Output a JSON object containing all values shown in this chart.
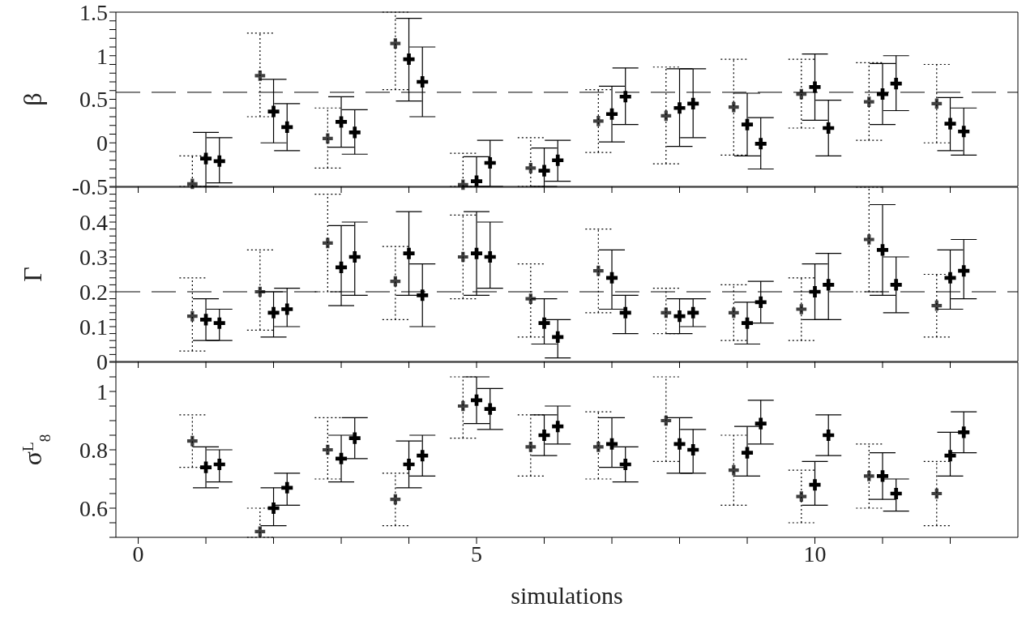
{
  "chart_data": [
    {
      "type": "scatter",
      "ylabel": "β",
      "xlim": [
        -0.33,
        13
      ],
      "ylim": [
        -0.5,
        1.5
      ],
      "tick_labels": "y",
      "marker": "cross",
      "xticks": [
        0,
        {
          "value": 1,
          "label": null
        },
        {
          "value": 2,
          "label": null
        },
        {
          "value": 3,
          "label": null
        },
        {
          "value": 4,
          "label": null
        },
        5,
        {
          "value": 6,
          "label": null
        },
        {
          "value": 7,
          "label": null
        },
        {
          "value": 8,
          "label": null
        },
        {
          "value": 9,
          "label": null
        },
        10,
        {
          "value": 11,
          "label": null
        },
        {
          "value": 12,
          "label": null
        }
      ],
      "yticks": [
        -0.5,
        {
          "value": -0.4,
          "label": null
        },
        {
          "value": -0.3,
          "label": null
        },
        {
          "value": -0.2,
          "label": null
        },
        {
          "value": -0.1,
          "label": null
        },
        0,
        {
          "value": 0.1,
          "label": null
        },
        {
          "value": 0.2,
          "label": null
        },
        {
          "value": 0.3,
          "label": null
        },
        {
          "value": 0.4,
          "label": null
        },
        0.5,
        {
          "value": 0.6,
          "label": null
        },
        {
          "value": 0.7,
          "label": null
        },
        {
          "value": 0.8,
          "label": null
        },
        {
          "value": 0.9,
          "label": null
        },
        1,
        {
          "value": 1.1,
          "label": null
        },
        {
          "value": 1.2,
          "label": null
        },
        {
          "value": 1.3,
          "label": null
        },
        {
          "value": 1.4,
          "label": null
        },
        1.5
      ],
      "ref_lines": [
        {
          "axis": "y",
          "value": 0.58,
          "color": "#000000",
          "line_style": "dashed"
        }
      ],
      "series": [
        {
          "color": "#000000",
          "line_style": "dotted",
          "x": [
            0.8,
            1.8,
            2.8,
            3.8,
            4.8,
            5.8,
            6.8,
            7.8,
            8.8,
            9.8,
            10.8,
            11.8
          ],
          "values": [
            -0.47,
            0.77,
            0.05,
            1.14,
            -0.48,
            -0.29,
            0.25,
            0.31,
            0.41,
            0.56,
            0.47,
            0.45
          ],
          "errors": [
            [
              -0.5,
              -0.15
            ],
            [
              0.3,
              1.26
            ],
            [
              -0.29,
              0.4
            ],
            [
              0.61,
              1.5
            ],
            [
              -0.5,
              -0.12
            ],
            [
              -0.5,
              0.06
            ],
            [
              -0.11,
              0.61
            ],
            [
              -0.24,
              0.87
            ],
            [
              -0.14,
              0.96
            ],
            [
              0.17,
              0.96
            ],
            [
              0.03,
              0.92
            ],
            [
              0,
              0.9
            ]
          ]
        },
        {
          "color": "#000000",
          "line_style": "solid",
          "x": [
            1,
            2,
            3,
            4,
            5,
            6,
            7,
            8,
            9,
            10,
            11,
            12
          ],
          "values": [
            -0.18,
            0.36,
            0.24,
            0.96,
            -0.44,
            -0.32,
            0.33,
            0.4,
            0.21,
            0.64,
            0.56,
            0.22
          ],
          "errors": [
            [
              -0.5,
              0.12
            ],
            [
              0,
              0.73
            ],
            [
              -0.05,
              0.53
            ],
            [
              0.48,
              1.43
            ],
            [
              -0.5,
              -0.16
            ],
            [
              -0.5,
              -0.06
            ],
            [
              0.01,
              0.65
            ],
            [
              -0.04,
              0.85
            ],
            [
              -0.15,
              0.57
            ],
            [
              0.26,
              1.02
            ],
            [
              0.21,
              0.91
            ],
            [
              -0.09,
              0.52
            ]
          ]
        },
        {
          "color": "#000000",
          "line_style": "solid",
          "x": [
            1.2,
            2.2,
            3.2,
            4.2,
            5.2,
            6.2,
            7.2,
            8.2,
            9.2,
            10.2,
            11.2,
            12.2
          ],
          "values": [
            -0.21,
            0.18,
            0.12,
            0.7,
            -0.23,
            -0.2,
            0.53,
            0.45,
            -0.01,
            0.17,
            0.68,
            0.13
          ],
          "errors": [
            [
              -0.46,
              0.06
            ],
            [
              -0.09,
              0.45
            ],
            [
              -0.13,
              0.38
            ],
            [
              0.3,
              1.1
            ],
            [
              -0.5,
              0.03
            ],
            [
              -0.44,
              0.03
            ],
            [
              0.21,
              0.86
            ],
            [
              0.06,
              0.85
            ],
            [
              -0.3,
              0.29
            ],
            [
              -0.15,
              0.49
            ],
            [
              0.37,
              1.0
            ],
            [
              -0.14,
              0.4
            ]
          ]
        }
      ]
    },
    {
      "type": "scatter",
      "ylabel": "Γ",
      "xlim": [
        -0.33,
        13
      ],
      "ylim": [
        0,
        0.5
      ],
      "tick_labels": "y",
      "marker": "cross",
      "xticks": [
        0,
        {
          "value": 1,
          "label": null
        },
        {
          "value": 2,
          "label": null
        },
        {
          "value": 3,
          "label": null
        },
        {
          "value": 4,
          "label": null
        },
        5,
        {
          "value": 6,
          "label": null
        },
        {
          "value": 7,
          "label": null
        },
        {
          "value": 8,
          "label": null
        },
        {
          "value": 9,
          "label": null
        },
        10,
        {
          "value": 11,
          "label": null
        },
        {
          "value": 12,
          "label": null
        }
      ],
      "yticks": [
        0,
        {
          "value": 0.02,
          "label": null
        },
        {
          "value": 0.04,
          "label": null
        },
        {
          "value": 0.06,
          "label": null
        },
        {
          "value": 0.08,
          "label": null
        },
        0.1,
        {
          "value": 0.12,
          "label": null
        },
        {
          "value": 0.14,
          "label": null
        },
        {
          "value": 0.16,
          "label": null
        },
        {
          "value": 0.18,
          "label": null
        },
        0.2,
        {
          "value": 0.22,
          "label": null
        },
        {
          "value": 0.24,
          "label": null
        },
        {
          "value": 0.26,
          "label": null
        },
        {
          "value": 0.28,
          "label": null
        },
        0.3,
        {
          "value": 0.32,
          "label": null
        },
        {
          "value": 0.34,
          "label": null
        },
        {
          "value": 0.36,
          "label": null
        },
        {
          "value": 0.38,
          "label": null
        },
        0.4,
        {
          "value": 0.42,
          "label": null
        },
        {
          "value": 0.44,
          "label": null
        },
        {
          "value": 0.46,
          "label": null
        },
        {
          "value": 0.48,
          "label": null
        },
        {
          "value": 0.5,
          "label": null
        }
      ],
      "ref_lines": [
        {
          "axis": "y",
          "value": 0.2,
          "color": "#000000",
          "line_style": "dashed"
        }
      ],
      "series": [
        {
          "color": "#000000",
          "line_style": "dotted",
          "x": [
            0.8,
            1.8,
            2.8,
            3.8,
            4.8,
            5.8,
            6.8,
            7.8,
            8.8,
            9.8,
            10.8,
            11.8
          ],
          "values": [
            0.13,
            0.2,
            0.34,
            0.23,
            0.3,
            0.18,
            0.26,
            0.14,
            0.14,
            0.15,
            0.35,
            0.16
          ],
          "errors": [
            [
              0.03,
              0.24
            ],
            [
              0.09,
              0.32
            ],
            [
              0.2,
              0.48
            ],
            [
              0.12,
              0.33
            ],
            [
              0.18,
              0.42
            ],
            [
              0.07,
              0.28
            ],
            [
              0.14,
              0.38
            ],
            [
              0.08,
              0.21
            ],
            [
              0.06,
              0.22
            ],
            [
              0.06,
              0.24
            ],
            [
              0.2,
              0.5
            ],
            [
              0.07,
              0.25
            ]
          ]
        },
        {
          "color": "#000000",
          "line_style": "solid",
          "x": [
            1,
            2,
            3,
            4,
            5,
            6,
            7,
            8,
            9,
            10,
            11,
            12
          ],
          "values": [
            0.12,
            0.14,
            0.27,
            0.31,
            0.31,
            0.11,
            0.24,
            0.13,
            0.11,
            0.2,
            0.32,
            0.24
          ],
          "errors": [
            [
              0.06,
              0.18
            ],
            [
              0.07,
              0.2
            ],
            [
              0.16,
              0.39
            ],
            [
              0.19,
              0.43
            ],
            [
              0.19,
              0.43
            ],
            [
              0.05,
              0.18
            ],
            [
              0.15,
              0.32
            ],
            [
              0.08,
              0.18
            ],
            [
              0.05,
              0.17
            ],
            [
              0.12,
              0.28
            ],
            [
              0.19,
              0.45
            ],
            [
              0.15,
              0.32
            ]
          ]
        },
        {
          "color": "#000000",
          "line_style": "solid",
          "x": [
            1.2,
            2.2,
            3.2,
            4.2,
            5.2,
            6.2,
            7.2,
            8.2,
            9.2,
            10.2,
            11.2,
            12.2
          ],
          "values": [
            0.11,
            0.15,
            0.3,
            0.19,
            0.3,
            0.07,
            0.14,
            0.14,
            0.17,
            0.22,
            0.22,
            0.26
          ],
          "errors": [
            [
              0.06,
              0.15
            ],
            [
              0.1,
              0.21
            ],
            [
              0.19,
              0.4
            ],
            [
              0.1,
              0.28
            ],
            [
              0.21,
              0.4
            ],
            [
              0.01,
              0.12
            ],
            [
              0.08,
              0.19
            ],
            [
              0.1,
              0.18
            ],
            [
              0.11,
              0.23
            ],
            [
              0.12,
              0.31
            ],
            [
              0.14,
              0.3
            ],
            [
              0.18,
              0.35
            ]
          ]
        }
      ]
    },
    {
      "type": "scatter",
      "ylabel": "σ$^{L}$$_{8}$",
      "xlabel": "simulations",
      "xlim": [
        -0.33,
        13
      ],
      "ylim": [
        0.5,
        1.1
      ],
      "marker": "cross",
      "xticks": [
        0,
        {
          "value": 1,
          "label": null
        },
        {
          "value": 2,
          "label": null
        },
        {
          "value": 3,
          "label": null
        },
        {
          "value": 4,
          "label": null
        },
        5,
        {
          "value": 6,
          "label": null
        },
        {
          "value": 7,
          "label": null
        },
        {
          "value": 8,
          "label": null
        },
        {
          "value": 9,
          "label": null
        },
        10,
        {
          "value": 11,
          "label": null
        },
        {
          "value": 12,
          "label": null
        }
      ],
      "yticks": [
        {
          "value": 0.5,
          "label": null
        },
        {
          "value": 0.55,
          "label": null
        },
        0.6,
        {
          "value": 0.65,
          "label": null
        },
        {
          "value": 0.7,
          "label": null
        },
        {
          "value": 0.75,
          "label": null
        },
        0.8,
        {
          "value": 0.85,
          "label": null
        },
        {
          "value": 0.9,
          "label": null
        },
        {
          "value": 0.95,
          "label": null
        },
        1,
        {
          "value": 1.05,
          "label": null
        },
        {
          "value": 1.1,
          "label": null
        }
      ],
      "series": [
        {
          "color": "#000000",
          "line_style": "dotted",
          "x": [
            0.8,
            1.8,
            2.8,
            3.8,
            4.8,
            5.8,
            6.8,
            7.8,
            8.8,
            9.8,
            10.8,
            11.8
          ],
          "values": [
            0.83,
            0.52,
            0.8,
            0.63,
            0.95,
            0.81,
            0.81,
            0.9,
            0.73,
            0.64,
            0.71,
            0.65
          ],
          "errors": [
            [
              0.74,
              0.92
            ],
            [
              0.5,
              0.6
            ],
            [
              0.7,
              0.91
            ],
            [
              0.54,
              0.72
            ],
            [
              0.84,
              1.05
            ],
            [
              0.71,
              0.92
            ],
            [
              0.7,
              0.93
            ],
            [
              0.76,
              1.05
            ],
            [
              0.61,
              0.85
            ],
            [
              0.55,
              0.73
            ],
            [
              0.6,
              0.82
            ],
            [
              0.54,
              0.76
            ]
          ]
        },
        {
          "color": "#000000",
          "line_style": "solid",
          "x": [
            1,
            2,
            3,
            4,
            5,
            6,
            7,
            8,
            9,
            10,
            11,
            12
          ],
          "values": [
            0.74,
            0.6,
            0.77,
            0.75,
            0.97,
            0.85,
            0.82,
            0.82,
            0.79,
            0.68,
            0.71,
            0.78
          ],
          "errors": [
            [
              0.67,
              0.81
            ],
            [
              0.54,
              0.67
            ],
            [
              0.69,
              0.85
            ],
            [
              0.67,
              0.83
            ],
            [
              0.89,
              1.05
            ],
            [
              0.78,
              0.92
            ],
            [
              0.74,
              0.91
            ],
            [
              0.72,
              0.91
            ],
            [
              0.71,
              0.88
            ],
            [
              0.61,
              0.76
            ],
            [
              0.63,
              0.79
            ],
            [
              0.71,
              0.86
            ]
          ]
        },
        {
          "color": "#000000",
          "line_style": "solid",
          "x": [
            1.2,
            2.2,
            3.2,
            4.2,
            5.2,
            6.2,
            7.2,
            8.2,
            9.2,
            10.2,
            11.2,
            12.2
          ],
          "values": [
            0.75,
            0.67,
            0.84,
            0.78,
            0.94,
            0.88,
            0.75,
            0.8,
            0.89,
            0.85,
            0.65,
            0.86
          ],
          "errors": [
            [
              0.69,
              0.8
            ],
            [
              0.61,
              0.72
            ],
            [
              0.77,
              0.91
            ],
            [
              0.71,
              0.85
            ],
            [
              0.87,
              1.01
            ],
            [
              0.82,
              0.95
            ],
            [
              0.69,
              0.81
            ],
            [
              0.72,
              0.87
            ],
            [
              0.82,
              0.97
            ],
            [
              0.78,
              0.92
            ],
            [
              0.59,
              0.7
            ],
            [
              0.79,
              0.93
            ]
          ]
        }
      ]
    }
  ]
}
